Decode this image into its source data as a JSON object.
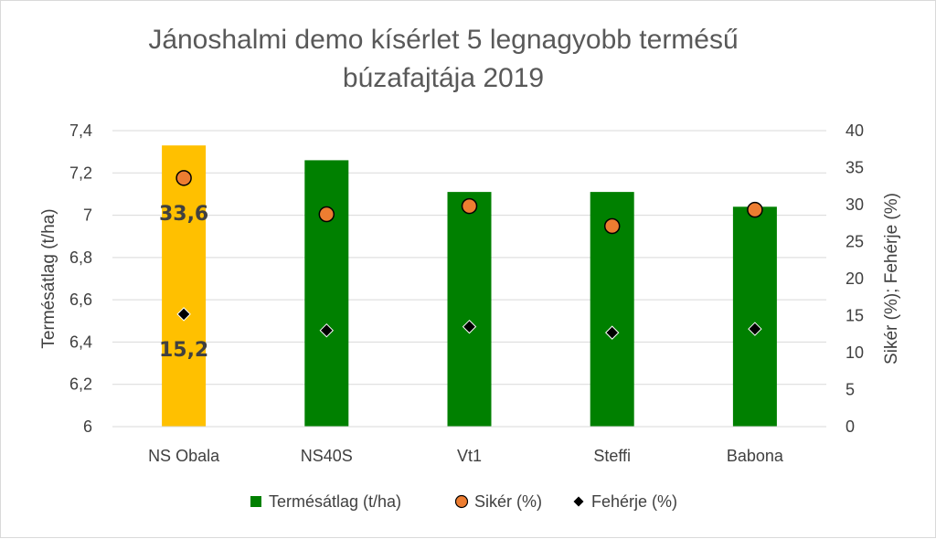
{
  "chart_data": {
    "type": "bar",
    "title_line1": "Jánoshalmi demo kísérlet 5 legnagyobb termésű",
    "title_line2": "búzafajtája 2019",
    "categories": [
      "NS Obala",
      "NS40S",
      "Vt1",
      "Steffi",
      "Babona"
    ],
    "ylabel": "Termésátlag (t/ha)",
    "y2label": "Sikér (%); Fehérje (%)",
    "ylim": [
      6,
      7.4
    ],
    "yticks": [
      "6",
      "6,2",
      "6,4",
      "6,6",
      "6,8",
      "7",
      "7,2",
      "7,4"
    ],
    "y2lim": [
      0,
      40
    ],
    "y2ticks": [
      "0",
      "5",
      "10",
      "15",
      "20",
      "25",
      "30",
      "35",
      "40"
    ],
    "grid": true,
    "legend_position": "bottom",
    "series": [
      {
        "name": "Termésátlag (t/ha)",
        "kind": "bar",
        "axis": "left",
        "values": [
          7.33,
          7.26,
          7.11,
          7.11,
          7.04
        ],
        "colors": [
          "#FFC000",
          "#008000",
          "#008000",
          "#008000",
          "#008000"
        ]
      },
      {
        "name": "Sikér (%)",
        "kind": "marker-circle",
        "axis": "right",
        "values": [
          33.6,
          28.7,
          29.8,
          27.1,
          29.3
        ],
        "color": "#ED7D31"
      },
      {
        "name": "Fehérje (%)",
        "kind": "marker-diamond",
        "axis": "right",
        "values": [
          15.2,
          13.0,
          13.5,
          12.7,
          13.2
        ],
        "color": "#000000"
      }
    ],
    "data_labels": [
      {
        "text": "33,6",
        "series": 1,
        "index": 0
      },
      {
        "text": "15,2",
        "series": 2,
        "index": 0
      }
    ]
  }
}
